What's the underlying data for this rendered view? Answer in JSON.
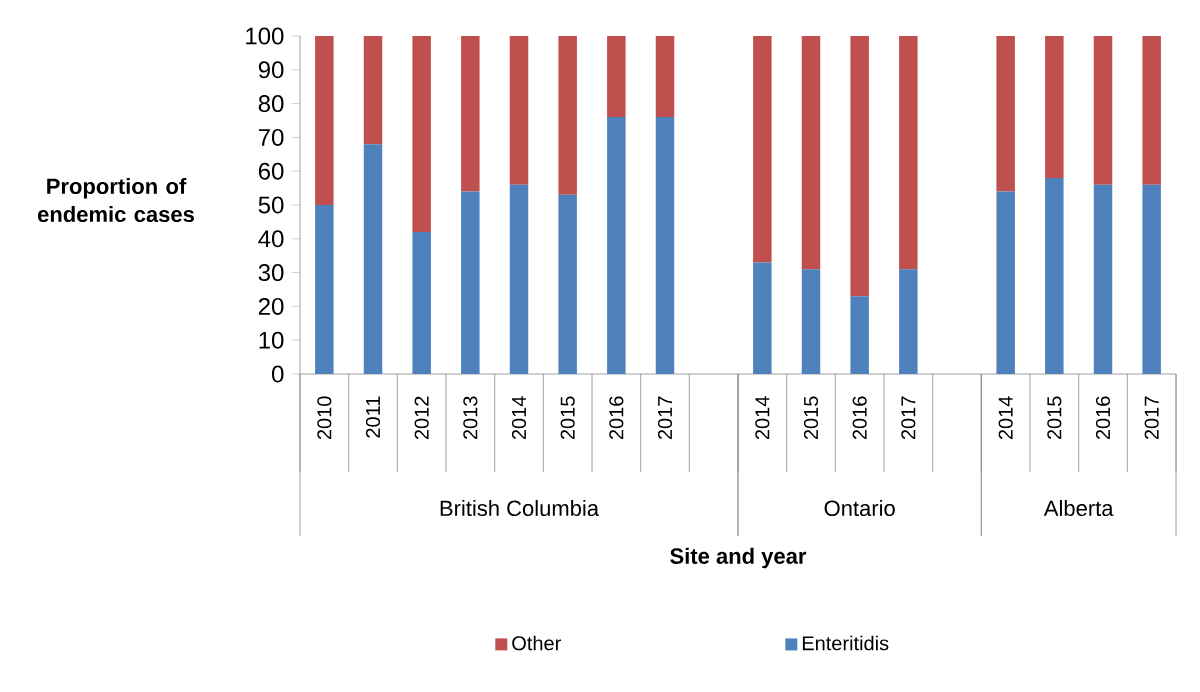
{
  "chart_data": {
    "type": "bar",
    "stacked": true,
    "xlabel": "Site and year",
    "ylabel": "Proportion of endemic cases",
    "categories": [
      "2010",
      "2011",
      "2012",
      "2013",
      "2014",
      "2015",
      "2016",
      "2017",
      null,
      "2014",
      "2015",
      "2016",
      "2017",
      null,
      "2014",
      "2015",
      "2016",
      "2017"
    ],
    "series": [
      {
        "name": "Enteritidis",
        "color": "#4f81bd",
        "values": [
          50,
          68,
          42,
          54,
          56,
          53,
          76,
          76,
          null,
          33,
          31,
          23,
          31,
          null,
          54,
          58,
          56,
          56
        ]
      },
      {
        "name": "Other",
        "color": "#c0504d",
        "values": [
          50,
          32,
          58,
          46,
          44,
          47,
          24,
          24,
          null,
          67,
          69,
          77,
          69,
          null,
          46,
          42,
          44,
          44
        ]
      }
    ],
    "annotations": [
      "British Columbia",
      "Ontario",
      "Alberta"
    ],
    "ylim": [
      0,
      100
    ],
    "yticks": [
      0,
      10,
      20,
      30,
      40,
      50,
      60,
      70,
      80,
      90,
      100
    ],
    "legend": "bottom",
    "grid": false
  }
}
